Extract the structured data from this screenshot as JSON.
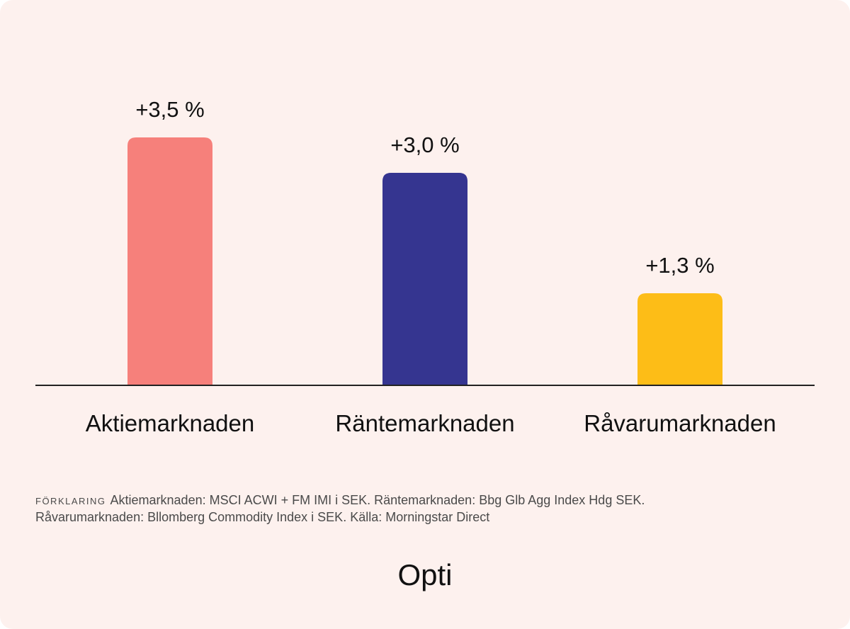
{
  "chart_data": {
    "type": "bar",
    "categories": [
      "Aktiemarknaden",
      "Räntemarknaden",
      "Råvarumarknaden"
    ],
    "values": [
      3.5,
      3.0,
      1.3
    ],
    "value_labels": [
      "+3,5 %",
      "+3,0 %",
      "+1,3 %"
    ],
    "colors": [
      "#f6807b",
      "#353590",
      "#fdbd17"
    ],
    "ylim": [
      0,
      3.5
    ],
    "grid": false,
    "title": "",
    "xlabel": "",
    "ylabel": ""
  },
  "footnote": {
    "key": "FÖRKLARING",
    "line1": "Aktiemarknaden: MSCI ACWI + FM IMI i SEK. Räntemarknaden: Bbg Glb Agg Index Hdg SEK.",
    "line2": "Råvarumarknaden: Bllomberg Commodity Index i SEK. Källa: Morningstar Direct"
  },
  "brand": "Opti"
}
